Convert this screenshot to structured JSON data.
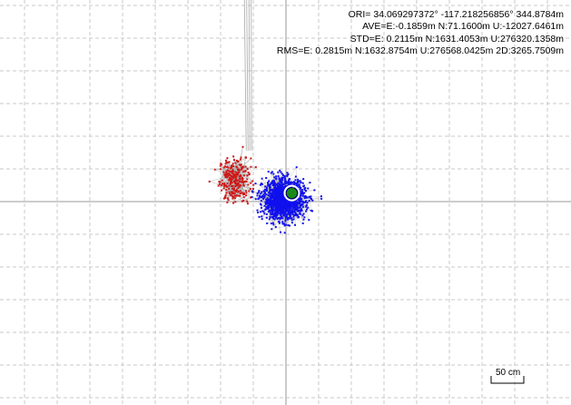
{
  "stats": {
    "ori": "ORI= 34.069297372° -117.218256856° 344.8784m",
    "ave": "AVE=E:-0.1859m N:71.1600m U:-12027.6461m",
    "std": "STD=E: 0.2115m N:1631.4053m U:276320.1358m",
    "rms": "RMS=E: 0.2815m N:1632.8754m U:276568.0425m 2D:3265.7509m"
  },
  "scale_bar": {
    "label": "50 cm"
  },
  "colors": {
    "background": "#ffffff",
    "grid": "#c8c8c8",
    "axis": "#9a9a9a",
    "track_line": "#a8a8a8",
    "series_a": "#d01818",
    "series_b": "#1010ee",
    "center_marker": "#1a8a1a"
  },
  "chart_data": {
    "type": "scatter",
    "grid": true,
    "series": [
      {
        "color": "#d01818",
        "center": [
          -0.78,
          0.33
        ],
        "spread": [
          0.12,
          0.17
        ]
      },
      {
        "color": "#1010ee",
        "center": [
          -0.03,
          0.03
        ],
        "spread": [
          0.16,
          0.15
        ]
      }
    ]
  }
}
